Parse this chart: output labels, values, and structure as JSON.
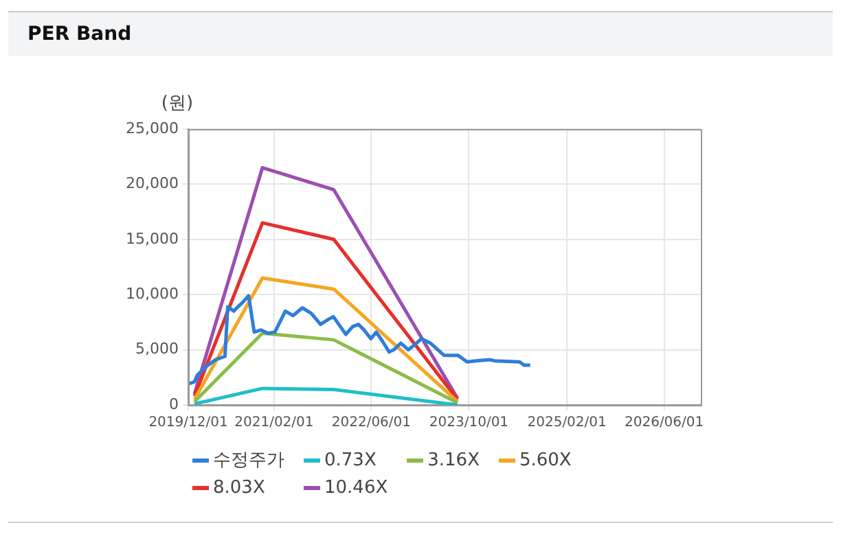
{
  "chart_data": {
    "type": "line",
    "title": "PER Band",
    "ylabel": "(원)",
    "xlim": [
      "2019-12-01",
      "2026-12-01"
    ],
    "xticks": [
      {
        "value": "2019-12-01",
        "label": "2019/12/01"
      },
      {
        "value": "2021-02-01",
        "label": "2021/02/01"
      },
      {
        "value": "2022-06-01",
        "label": "2022/06/01"
      },
      {
        "value": "2023-10-01",
        "label": "2023/10/01"
      },
      {
        "value": "2025-02-01",
        "label": "2025/02/01"
      },
      {
        "value": "2026-06-01",
        "label": "2026/06/01"
      }
    ],
    "ylim": [
      0,
      25000
    ],
    "yticks": [
      {
        "value": 0,
        "label": "0"
      },
      {
        "value": 5000,
        "label": "5,000"
      },
      {
        "value": 10000,
        "label": "10,000"
      },
      {
        "value": 15000,
        "label": "15,000"
      },
      {
        "value": 20000,
        "label": "20,000"
      },
      {
        "value": 25000,
        "label": "25,000"
      }
    ],
    "grid": true,
    "legend": "bottom",
    "marker": "none",
    "line_style": "solid",
    "series": [
      {
        "name": "수정주가",
        "color": "#2f7ed8",
        "x": [
          "2019-12-01",
          "2020-01-01",
          "2020-01-15",
          "2020-03-01",
          "2020-04-15",
          "2020-06-01",
          "2020-06-15",
          "2020-07-15",
          "2020-08-05",
          "2020-08-29",
          "2020-09-27",
          "2020-10-25",
          "2020-11-28",
          "2021-01-01",
          "2021-02-05",
          "2021-03-29",
          "2021-05-07",
          "2021-06-22",
          "2021-08-06",
          "2021-09-21",
          "2021-10-25",
          "2021-11-24",
          "2021-12-21",
          "2022-01-25",
          "2022-02-28",
          "2022-03-29",
          "2022-04-26",
          "2022-05-30",
          "2022-06-26",
          "2022-07-26",
          "2022-08-29",
          "2022-09-21",
          "2022-10-26",
          "2022-12-03",
          "2023-01-13",
          "2023-02-06",
          "2023-03-23",
          "2023-05-30",
          "2023-08-07",
          "2023-09-22",
          "2023-11-06",
          "2024-01-14",
          "2024-02-06",
          "2024-06-10",
          "2024-07-03",
          "2024-08-02"
        ],
        "values": [
          1900,
          2100,
          2700,
          3500,
          4100,
          4400,
          8900,
          8500,
          8900,
          9300,
          9900,
          6600,
          6800,
          6500,
          6600,
          8500,
          8100,
          8800,
          8300,
          7300,
          7700,
          8000,
          7300,
          6400,
          7100,
          7300,
          6800,
          6000,
          6600,
          5800,
          4800,
          5000,
          5600,
          5000,
          5600,
          6000,
          5600,
          4500,
          4500,
          3900,
          4000,
          4100,
          4000,
          3900,
          3600,
          3600
        ]
      },
      {
        "name": "0.73X",
        "color": "#1fbfc8",
        "x": [
          "2020-01-01",
          "2020-12-05",
          "2021-11-26",
          "2023-08-05"
        ],
        "values": [
          100,
          1500,
          1400,
          0
        ]
      },
      {
        "name": "3.16X",
        "color": "#8bbc4a",
        "x": [
          "2020-01-01",
          "2020-12-05",
          "2021-11-26",
          "2023-08-05"
        ],
        "values": [
          300,
          6500,
          5900,
          200
        ]
      },
      {
        "name": "5.60X",
        "color": "#f5a623",
        "x": [
          "2020-01-01",
          "2020-12-05",
          "2021-11-26",
          "2023-08-05"
        ],
        "values": [
          500,
          11500,
          10500,
          300
        ]
      },
      {
        "name": "8.03X",
        "color": "#e5302a",
        "x": [
          "2020-01-01",
          "2020-12-05",
          "2021-11-26",
          "2023-08-05"
        ],
        "values": [
          800,
          16500,
          15000,
          500
        ]
      },
      {
        "name": "10.46X",
        "color": "#9b4fb0",
        "x": [
          "2020-01-01",
          "2020-12-05",
          "2021-11-26",
          "2023-08-05"
        ],
        "values": [
          1000,
          21500,
          19500,
          600
        ]
      }
    ]
  }
}
